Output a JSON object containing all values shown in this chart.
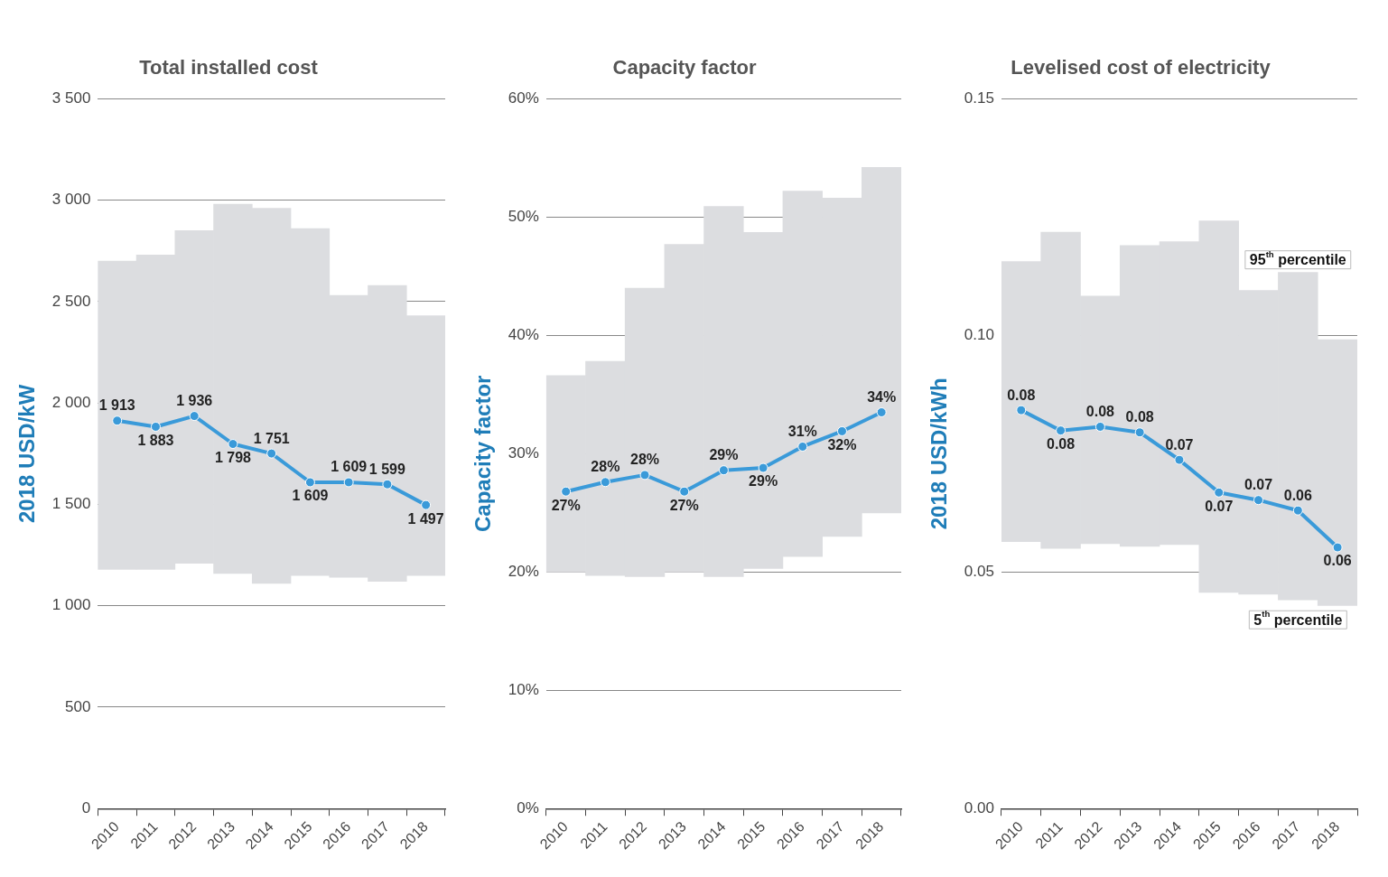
{
  "chart_data": [
    {
      "type": "bar",
      "title": "Total installed cost",
      "ylabel": "2018 USD/kW",
      "categories": [
        "2010",
        "2011",
        "2012",
        "2013",
        "2014",
        "2015",
        "2016",
        "2017",
        "2018"
      ],
      "series": [
        {
          "color": "#dcdde0",
          "base": [
            1180,
            1180,
            1210,
            1160,
            1110,
            1150,
            1140,
            1120,
            1150
          ],
          "values": [
            1520,
            1550,
            1640,
            1820,
            1850,
            1710,
            1390,
            1460,
            1280
          ]
        },
        {
          "type": "line",
          "color": "#3a9ad9",
          "values": [
            1913,
            1883,
            1936,
            1798,
            1751,
            1609,
            1609,
            1599,
            1497
          ],
          "value_labels": [
            "1 913",
            "1 883",
            "1 936",
            "1 798",
            "1 751",
            "1 609",
            "1 609",
            "1 599",
            "1 497"
          ]
        }
      ],
      "ylim": [
        0,
        3500
      ],
      "yticks": [
        {
          "value": 0,
          "label": "0"
        },
        {
          "value": 500,
          "label": "500"
        },
        {
          "value": 1000,
          "label": "1 000"
        },
        {
          "value": 1500,
          "label": "1 500"
        },
        {
          "value": 2000,
          "label": "2 000"
        },
        {
          "value": 2500,
          "label": "2 500"
        },
        {
          "value": 3000,
          "label": "3 000"
        },
        {
          "value": 3500,
          "label": "3 500"
        }
      ],
      "grid": "y",
      "marker": "circle"
    },
    {
      "type": "bar",
      "title": "Capacity factor",
      "ylabel": "Capacity factor",
      "categories": [
        "2010",
        "2011",
        "2012",
        "2013",
        "2014",
        "2015",
        "2016",
        "2017",
        "2018"
      ],
      "series": [
        {
          "color": "#dcdde0",
          "base": [
            20.0,
            19.7,
            19.6,
            20.0,
            19.6,
            20.3,
            21.3,
            23.0,
            25.0
          ],
          "values": [
            16.6,
            18.1,
            24.4,
            27.7,
            31.3,
            28.4,
            30.9,
            28.6,
            29.2
          ]
        },
        {
          "type": "line",
          "color": "#3a9ad9",
          "values": [
            26.8,
            27.6,
            28.2,
            26.8,
            28.6,
            28.8,
            30.6,
            31.9,
            33.5
          ],
          "value_labels": [
            "27%",
            "28%",
            "28%",
            "27%",
            "29%",
            "29%",
            "31%",
            "32%",
            "34%"
          ]
        }
      ],
      "ylim": [
        0,
        60
      ],
      "yticks": [
        {
          "value": 0,
          "label": "0%"
        },
        {
          "value": 10,
          "label": "10%"
        },
        {
          "value": 20,
          "label": "20%"
        },
        {
          "value": 30,
          "label": "30%"
        },
        {
          "value": 40,
          "label": "40%"
        },
        {
          "value": 50,
          "label": "50%"
        },
        {
          "value": 60,
          "label": "60%"
        }
      ],
      "grid": "y",
      "marker": "circle"
    },
    {
      "type": "bar",
      "title": "Levelised cost of electricity",
      "ylabel": "2018 USD/kWh",
      "categories": [
        "2010",
        "2011",
        "2012",
        "2013",
        "2014",
        "2015",
        "2016",
        "2017",
        "2018"
      ],
      "series": [
        {
          "color": "#dcdde0",
          "base": [
            0.0564,
            0.055,
            0.056,
            0.0554,
            0.0558,
            0.0457,
            0.0453,
            0.0441,
            0.0429
          ],
          "values": [
            0.0592,
            0.0668,
            0.0523,
            0.0636,
            0.064,
            0.0785,
            0.0642,
            0.0692,
            0.0562
          ]
        },
        {
          "type": "line",
          "color": "#3a9ad9",
          "values": [
            0.0842,
            0.0799,
            0.0807,
            0.0795,
            0.0737,
            0.0668,
            0.0652,
            0.063,
            0.0552
          ],
          "value_labels": [
            "0.08",
            "0.08",
            "0.08",
            "0.08",
            "0.07",
            "0.07",
            "0.07",
            "0.06",
            "0.06"
          ]
        }
      ],
      "ylim": [
        0,
        0.15
      ],
      "yticks": [
        {
          "value": 0,
          "label": "0.00"
        },
        {
          "value": 0.05,
          "label": "0.05"
        },
        {
          "value": 0.1,
          "label": "0.10"
        },
        {
          "value": 0.15,
          "label": "0.15"
        }
      ],
      "annotations": [
        "95$^{th}$ percentile",
        "5$^{th}$ percentile"
      ],
      "grid": "y",
      "marker": "circle"
    }
  ]
}
